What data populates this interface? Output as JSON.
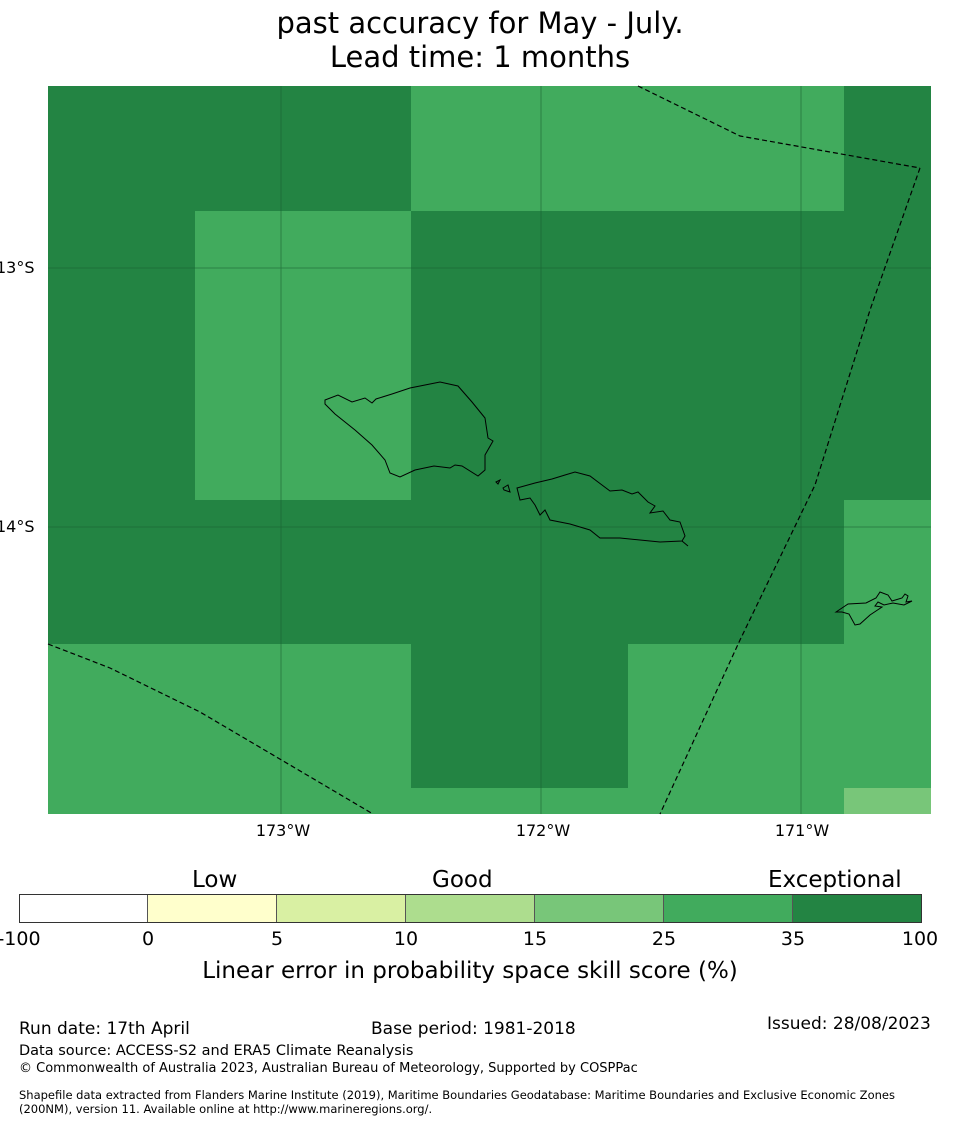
{
  "title": {
    "line1": "past accuracy for May - July.",
    "line2": "Lead time: 1 months"
  },
  "map": {
    "lat_labels": [
      "13°S",
      "14°S"
    ],
    "lon_labels": [
      "173°W",
      "172°W",
      "171°W"
    ]
  },
  "colorbar": {
    "categories": [
      "Low",
      "Good",
      "Exceptional"
    ],
    "ticks": [
      "-100",
      "0",
      "5",
      "10",
      "15",
      "25",
      "35",
      "100"
    ],
    "colors": [
      "#ffffff",
      "#ffffcc",
      "#d9f0a3",
      "#addd8e",
      "#78c679",
      "#41ab5d",
      "#238443"
    ],
    "axis_title": "Linear error in probability space skill score (%)"
  },
  "footer": {
    "run_date": "Run date: 17th April",
    "base_period": "Base period: 1981-2018",
    "issued": "Issued: 28/08/2023",
    "data_source": "Data source: ACCESS-S2 and ERA5 Climate Reanalysis",
    "copyright": "© Commonwealth of Australia 2023, Australian Bureau of Meteorology, Supported by COSPPac",
    "shapefile_line1": "Shapefile data extracted from Flanders Marine Institute (2019), Maritime Boundaries Geodatabase: Maritime Boundaries and Exclusive Economic Zones",
    "shapefile_line2": "(200NM), version 11. Available online at http://www.marineregions.org/."
  }
}
